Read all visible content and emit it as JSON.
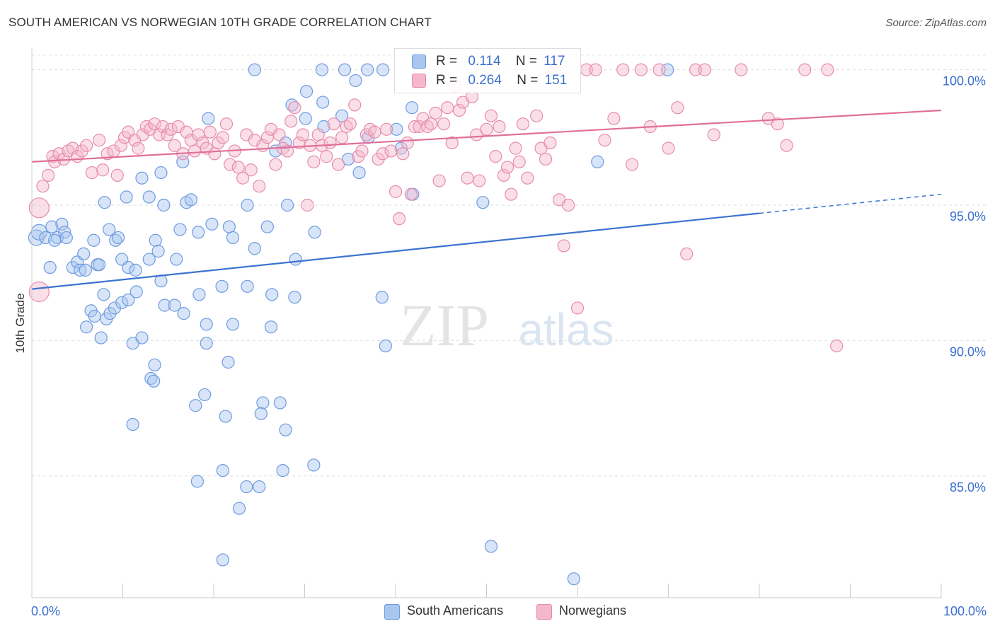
{
  "title": "SOUTH AMERICAN VS NORWEGIAN 10TH GRADE CORRELATION CHART",
  "source": "Source: ZipAtlas.com",
  "watermark": {
    "zip": "ZIP",
    "atlas": "atlas"
  },
  "colors": {
    "blue": "#3b73d1",
    "blue_fill": "#a9c6ef",
    "pink": "#e06f99",
    "pink_fill": "#f4b7cb",
    "axis_text": "#3b6fcf",
    "grid": "#dddddd"
  },
  "legend_top": {
    "rows": [
      {
        "r_label": "R =",
        "r_value": "0.114",
        "n_label": "N =",
        "n_value": "117"
      },
      {
        "r_label": "R =",
        "r_value": "0.264",
        "n_label": "N =",
        "n_value": "151"
      }
    ]
  },
  "legend_bottom": {
    "items": [
      "South Americans",
      "Norwegians"
    ]
  },
  "chart_data": {
    "type": "scatter",
    "title": "SOUTH AMERICAN VS NORWEGIAN 10TH GRADE CORRELATION CHART",
    "xlabel": "",
    "ylabel": "10th Grade",
    "xlim": [
      0,
      100
    ],
    "ylim": [
      80.5,
      100.8
    ],
    "x_tick_labels": [
      "0.0%",
      "100.0%"
    ],
    "y_ticks": [
      85,
      90,
      95,
      100
    ],
    "y_tick_labels": [
      "85.0%",
      "90.0%",
      "95.0%",
      "100.0%"
    ],
    "series": [
      {
        "name": "South Americans",
        "color": "#3b73d1",
        "r": 0.114,
        "n": 117,
        "trend": {
          "x0": 0,
          "y0": 91.9,
          "x1": 80,
          "y1": 94.7,
          "dash_to_x": 100,
          "dash_to_y": 95.4
        },
        "points": [
          [
            0.5,
            93.8
          ],
          [
            0.8,
            94.0
          ],
          [
            1.5,
            93.8
          ],
          [
            2.0,
            92.7
          ],
          [
            2.2,
            94.2
          ],
          [
            2.8,
            93.8
          ],
          [
            3.3,
            94.3
          ],
          [
            3.6,
            94.0
          ],
          [
            3.8,
            93.8
          ],
          [
            2.5,
            93.7
          ],
          [
            4.5,
            92.7
          ],
          [
            5.0,
            92.9
          ],
          [
            5.3,
            92.6
          ],
          [
            5.7,
            93.2
          ],
          [
            5.9,
            92.6
          ],
          [
            6.8,
            93.7
          ],
          [
            7.2,
            92.8
          ],
          [
            8.5,
            94.1
          ],
          [
            9.2,
            93.7
          ],
          [
            9.5,
            93.8
          ],
          [
            9.9,
            93.0
          ],
          [
            10.6,
            92.7
          ],
          [
            11.4,
            92.6
          ],
          [
            7.9,
            91.7
          ],
          [
            6.0,
            90.5
          ],
          [
            6.5,
            91.1
          ],
          [
            6.9,
            90.9
          ],
          [
            7.4,
            92.8
          ],
          [
            7.6,
            90.1
          ],
          [
            8.2,
            90.8
          ],
          [
            8.6,
            91.0
          ],
          [
            9.1,
            91.2
          ],
          [
            9.9,
            91.4
          ],
          [
            10.6,
            91.5
          ],
          [
            11.1,
            89.9
          ],
          [
            11.5,
            91.8
          ],
          [
            12.9,
            93.0
          ],
          [
            13.6,
            93.7
          ],
          [
            13.9,
            93.3
          ],
          [
            14.2,
            92.2
          ],
          [
            15.9,
            93.0
          ],
          [
            16.3,
            94.1
          ],
          [
            17.0,
            95.1
          ],
          [
            18.3,
            94.0
          ],
          [
            19.8,
            94.3
          ],
          [
            20.9,
            92.0
          ],
          [
            21.7,
            94.2
          ],
          [
            22.1,
            93.8
          ],
          [
            23.7,
            95.0
          ],
          [
            23.7,
            92.0
          ],
          [
            24.5,
            93.4
          ],
          [
            25.9,
            94.2
          ],
          [
            26.4,
            91.7
          ],
          [
            28.1,
            95.0
          ],
          [
            29.0,
            93.0
          ],
          [
            28.9,
            91.6
          ],
          [
            14.6,
            91.3
          ],
          [
            15.7,
            91.3
          ],
          [
            16.7,
            91.0
          ],
          [
            18.4,
            91.7
          ],
          [
            19.2,
            90.6
          ],
          [
            19.2,
            89.9
          ],
          [
            22.1,
            90.6
          ],
          [
            26.3,
            90.5
          ],
          [
            21.6,
            89.2
          ],
          [
            13.1,
            88.6
          ],
          [
            13.4,
            88.5
          ],
          [
            13.5,
            89.1
          ],
          [
            12.1,
            90.1
          ],
          [
            11.1,
            86.9
          ],
          [
            18.0,
            87.6
          ],
          [
            19.0,
            88.0
          ],
          [
            21.3,
            87.2
          ],
          [
            25.4,
            87.7
          ],
          [
            25.2,
            87.3
          ],
          [
            27.3,
            87.7
          ],
          [
            27.9,
            86.7
          ],
          [
            31.0,
            85.4
          ],
          [
            27.6,
            85.2
          ],
          [
            21.0,
            85.2
          ],
          [
            23.6,
            84.6
          ],
          [
            25.0,
            84.6
          ],
          [
            18.2,
            84.8
          ],
          [
            22.8,
            83.8
          ],
          [
            21.0,
            81.9
          ],
          [
            50.5,
            82.4
          ],
          [
            59.6,
            81.2
          ],
          [
            10.4,
            95.3
          ],
          [
            12.1,
            96.0
          ],
          [
            12.9,
            95.3
          ],
          [
            14.2,
            96.2
          ],
          [
            14.5,
            95.0
          ],
          [
            16.6,
            96.6
          ],
          [
            17.5,
            95.2
          ],
          [
            8.0,
            95.1
          ],
          [
            19.4,
            98.2
          ],
          [
            24.5,
            100.0
          ],
          [
            28.6,
            98.7
          ],
          [
            30.2,
            99.2
          ],
          [
            31.9,
            100.0
          ],
          [
            32.0,
            98.8
          ],
          [
            34.4,
            100.0
          ],
          [
            35.6,
            99.6
          ],
          [
            32.1,
            97.9
          ],
          [
            34.1,
            98.3
          ],
          [
            36.9,
            100.0
          ],
          [
            37.0,
            97.5
          ],
          [
            38.6,
            100.0
          ],
          [
            40.1,
            97.8
          ],
          [
            40.6,
            97.1
          ],
          [
            41.8,
            98.6
          ],
          [
            27.9,
            97.3
          ],
          [
            26.8,
            97.0
          ],
          [
            30.1,
            98.2
          ],
          [
            41.9,
            95.4
          ],
          [
            49.6,
            95.1
          ],
          [
            62.2,
            96.6
          ],
          [
            69.9,
            100.0
          ],
          [
            38.5,
            91.6
          ],
          [
            38.9,
            89.8
          ],
          [
            31.1,
            94.0
          ],
          [
            34.8,
            96.7
          ],
          [
            36.0,
            96.2
          ]
        ]
      },
      {
        "name": "Norwegians",
        "color": "#e06f99",
        "r": 0.264,
        "n": 151,
        "trend": {
          "x0": 0,
          "y0": 96.6,
          "x1": 100,
          "y1": 98.5
        },
        "points": [
          [
            0.8,
            94.9
          ],
          [
            0.8,
            91.8
          ],
          [
            1.2,
            95.7
          ],
          [
            1.8,
            96.1
          ],
          [
            2.3,
            96.8
          ],
          [
            2.5,
            96.6
          ],
          [
            3.0,
            96.9
          ],
          [
            3.5,
            96.7
          ],
          [
            4.0,
            97.0
          ],
          [
            4.5,
            97.1
          ],
          [
            5.0,
            96.8
          ],
          [
            5.5,
            97.0
          ],
          [
            6.0,
            97.2
          ],
          [
            6.6,
            96.2
          ],
          [
            7.4,
            97.4
          ],
          [
            7.8,
            96.3
          ],
          [
            8.3,
            96.9
          ],
          [
            9.0,
            97.0
          ],
          [
            9.4,
            96.1
          ],
          [
            9.8,
            97.2
          ],
          [
            10.2,
            97.5
          ],
          [
            10.6,
            97.7
          ],
          [
            11.3,
            97.4
          ],
          [
            11.7,
            97.1
          ],
          [
            12.2,
            97.6
          ],
          [
            12.6,
            97.9
          ],
          [
            13.0,
            97.8
          ],
          [
            13.5,
            98.0
          ],
          [
            14.0,
            97.6
          ],
          [
            14.4,
            97.9
          ],
          [
            14.9,
            97.6
          ],
          [
            15.3,
            97.8
          ],
          [
            15.7,
            97.2
          ],
          [
            16.1,
            97.9
          ],
          [
            16.6,
            96.9
          ],
          [
            17.0,
            97.7
          ],
          [
            17.5,
            97.4
          ],
          [
            17.9,
            97.0
          ],
          [
            18.3,
            97.6
          ],
          [
            18.8,
            97.3
          ],
          [
            19.2,
            97.1
          ],
          [
            19.6,
            97.7
          ],
          [
            20.1,
            96.9
          ],
          [
            20.5,
            97.3
          ],
          [
            21.0,
            97.5
          ],
          [
            21.4,
            98.0
          ],
          [
            21.8,
            96.5
          ],
          [
            22.3,
            97.0
          ],
          [
            22.7,
            96.4
          ],
          [
            23.2,
            96.0
          ],
          [
            23.6,
            97.6
          ],
          [
            24.1,
            96.3
          ],
          [
            24.5,
            97.4
          ],
          [
            25.0,
            95.7
          ],
          [
            25.4,
            97.2
          ],
          [
            25.9,
            97.5
          ],
          [
            26.3,
            97.8
          ],
          [
            26.8,
            96.5
          ],
          [
            27.2,
            97.6
          ],
          [
            27.6,
            97.1
          ],
          [
            28.1,
            97.0
          ],
          [
            28.5,
            98.1
          ],
          [
            28.9,
            98.6
          ],
          [
            29.4,
            97.3
          ],
          [
            29.8,
            97.6
          ],
          [
            30.3,
            95.0
          ],
          [
            30.6,
            97.2
          ],
          [
            31.0,
            96.6
          ],
          [
            31.5,
            97.6
          ],
          [
            31.9,
            97.2
          ],
          [
            32.4,
            96.8
          ],
          [
            32.8,
            97.3
          ],
          [
            33.2,
            98.0
          ],
          [
            33.7,
            96.5
          ],
          [
            34.1,
            97.5
          ],
          [
            34.6,
            97.9
          ],
          [
            35.0,
            98.0
          ],
          [
            35.5,
            98.7
          ],
          [
            35.9,
            96.8
          ],
          [
            36.3,
            97.0
          ],
          [
            36.8,
            97.6
          ],
          [
            37.2,
            97.8
          ],
          [
            37.7,
            97.7
          ],
          [
            38.1,
            96.7
          ],
          [
            38.6,
            96.9
          ],
          [
            39.0,
            97.8
          ],
          [
            39.5,
            97.0
          ],
          [
            40.0,
            95.5
          ],
          [
            40.4,
            94.5
          ],
          [
            40.8,
            96.9
          ],
          [
            41.3,
            97.3
          ],
          [
            41.7,
            95.4
          ],
          [
            42.1,
            97.9
          ],
          [
            42.6,
            97.9
          ],
          [
            43.0,
            98.2
          ],
          [
            43.5,
            97.9
          ],
          [
            43.9,
            98.0
          ],
          [
            44.4,
            98.4
          ],
          [
            44.8,
            95.9
          ],
          [
            45.3,
            98.0
          ],
          [
            45.7,
            98.6
          ],
          [
            46.2,
            97.3
          ],
          [
            46.6,
            99.4
          ],
          [
            47.0,
            98.5
          ],
          [
            47.4,
            98.8
          ],
          [
            47.9,
            96.0
          ],
          [
            48.4,
            99.0
          ],
          [
            48.9,
            97.6
          ],
          [
            49.2,
            95.9
          ],
          [
            50.0,
            97.8
          ],
          [
            50.5,
            98.3
          ],
          [
            51.0,
            96.8
          ],
          [
            51.4,
            97.9
          ],
          [
            51.9,
            96.1
          ],
          [
            52.3,
            96.4
          ],
          [
            52.7,
            95.4
          ],
          [
            53.2,
            97.1
          ],
          [
            53.6,
            96.6
          ],
          [
            54.0,
            98.0
          ],
          [
            54.5,
            96.0
          ],
          [
            55.5,
            98.3
          ],
          [
            56.0,
            97.1
          ],
          [
            56.5,
            96.7
          ],
          [
            57.0,
            97.3
          ],
          [
            57.5,
            100.0
          ],
          [
            58.0,
            95.2
          ],
          [
            58.5,
            93.5
          ],
          [
            59.0,
            95.0
          ],
          [
            60.0,
            91.2
          ],
          [
            61.0,
            100.0
          ],
          [
            62.0,
            100.0
          ],
          [
            63.0,
            97.4
          ],
          [
            64.0,
            98.2
          ],
          [
            65.0,
            100.0
          ],
          [
            66.0,
            96.5
          ],
          [
            67.0,
            100.0
          ],
          [
            68.0,
            97.9
          ],
          [
            69.0,
            100.0
          ],
          [
            70.0,
            97.1
          ],
          [
            71.0,
            98.6
          ],
          [
            72.0,
            93.2
          ],
          [
            73.0,
            100.0
          ],
          [
            74.0,
            100.0
          ],
          [
            75.0,
            97.6
          ],
          [
            78.0,
            100.0
          ],
          [
            81.0,
            98.2
          ],
          [
            82.0,
            98.0
          ],
          [
            83.0,
            97.2
          ],
          [
            85.0,
            100.0
          ],
          [
            87.5,
            100.0
          ],
          [
            88.5,
            89.8
          ]
        ]
      }
    ]
  }
}
